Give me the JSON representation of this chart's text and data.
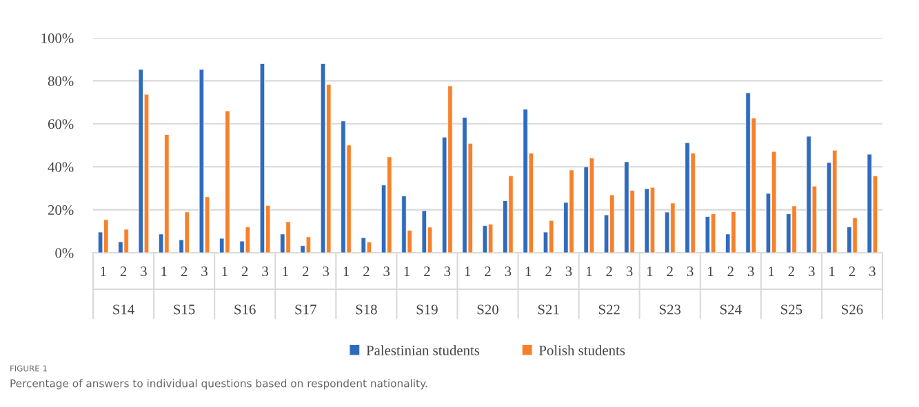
{
  "chart_data": {
    "type": "bar",
    "title": "FIGURE 1",
    "subtitle": "Percentage of answers to individual questions based on respondent nationality.",
    "categories": [
      "1",
      "2",
      "3",
      "1",
      "2",
      "3",
      "1",
      "2",
      "3",
      "1",
      "2",
      "3",
      "1",
      "2",
      "3",
      "1",
      "2",
      "3",
      "1",
      "2",
      "3",
      "1",
      "2",
      "3",
      "1",
      "2",
      "3",
      "1",
      "2",
      "3",
      "1",
      "2",
      "3",
      "1",
      "2",
      "3",
      "1",
      "2",
      "3"
    ],
    "annotations": [
      "S14",
      "S15",
      "S16",
      "S17",
      "S18",
      "S19",
      "S20",
      "S21",
      "S22",
      "S23",
      "S24",
      "S25",
      "S26"
    ],
    "series": [
      {
        "name": "Palestinian students",
        "color": "#2f6bbd",
        "values": [
          9.6,
          5.1,
          85.3,
          8.7,
          6,
          85.3,
          6.7,
          5.4,
          88,
          8.7,
          3.3,
          88,
          61.3,
          7,
          31.5,
          26.4,
          19.6,
          53.8,
          63,
          12.6,
          24.2,
          66.8,
          9.6,
          23.4,
          40,
          17.6,
          42.3,
          29.8,
          18.9,
          51.2,
          16.8,
          8.7,
          74.4,
          27.6,
          18.1,
          54.2,
          42,
          12,
          45.8
        ]
      },
      {
        "name": "Polish students",
        "color": "#f7812b",
        "values": [
          15.4,
          10.9,
          73.7,
          55,
          19,
          26,
          66,
          12,
          22,
          14.4,
          7.4,
          78.3,
          50.1,
          5,
          44.6,
          10.4,
          11.9,
          77.6,
          50.9,
          13.3,
          35.8,
          46.4,
          15,
          38.5,
          44.1,
          26.9,
          29,
          30.4,
          23.1,
          46.4,
          18.1,
          19.1,
          62.7,
          47.1,
          21.8,
          31,
          47.7,
          16.3,
          35.8
        ]
      }
    ],
    "ylim": [
      0,
      100
    ],
    "yticks": [
      {
        "value": 0,
        "label": "0%"
      },
      {
        "value": 20,
        "label": "20%"
      },
      {
        "value": 40,
        "label": "40%"
      },
      {
        "value": 60,
        "label": "60%"
      },
      {
        "value": 80,
        "label": "80%"
      },
      {
        "value": 100,
        "label": "100%"
      }
    ],
    "grid": "y",
    "legend": "bottom"
  }
}
